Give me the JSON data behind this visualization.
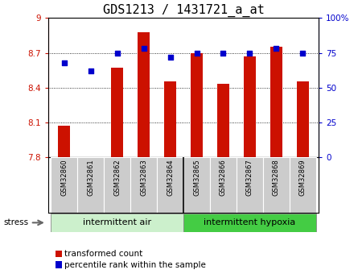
{
  "title": "GDS1213 / 1431721_a_at",
  "samples": [
    "GSM32860",
    "GSM32861",
    "GSM32862",
    "GSM32863",
    "GSM32864",
    "GSM32865",
    "GSM32866",
    "GSM32867",
    "GSM32868",
    "GSM32869"
  ],
  "transformed_count": [
    8.07,
    7.8,
    8.57,
    8.88,
    8.45,
    8.7,
    8.43,
    8.67,
    8.75,
    8.45
  ],
  "percentile_rank": [
    68,
    62,
    75,
    78,
    72,
    75,
    75,
    75,
    78,
    75
  ],
  "bar_color": "#cc1100",
  "dot_color": "#0000cc",
  "ylim_left": [
    7.8,
    9.0
  ],
  "ylim_right": [
    0,
    100
  ],
  "yticks_left": [
    7.8,
    8.1,
    8.4,
    8.7,
    9.0
  ],
  "ytick_labels_left": [
    "7.8",
    "8.1",
    "8.4",
    "8.7",
    "9"
  ],
  "yticks_right": [
    0,
    25,
    50,
    75,
    100
  ],
  "ytick_labels_right": [
    "0",
    "25",
    "50",
    "75",
    "100%"
  ],
  "group1_label": "intermittent air",
  "group2_label": "intermittent hypoxia",
  "group1_n": 5,
  "group2_n": 5,
  "stress_label": "stress",
  "legend_bar_label": "transformed count",
  "legend_dot_label": "percentile rank within the sample",
  "bar_bottom": 7.8,
  "grid_color": "#000000",
  "plot_bg": "#ffffff",
  "sample_box_color": "#cccccc",
  "group1_color": "#ccf0cc",
  "group2_color": "#44cc44",
  "title_fontsize": 11,
  "tick_fontsize": 7.5,
  "legend_fontsize": 7.5,
  "bar_width": 0.45
}
